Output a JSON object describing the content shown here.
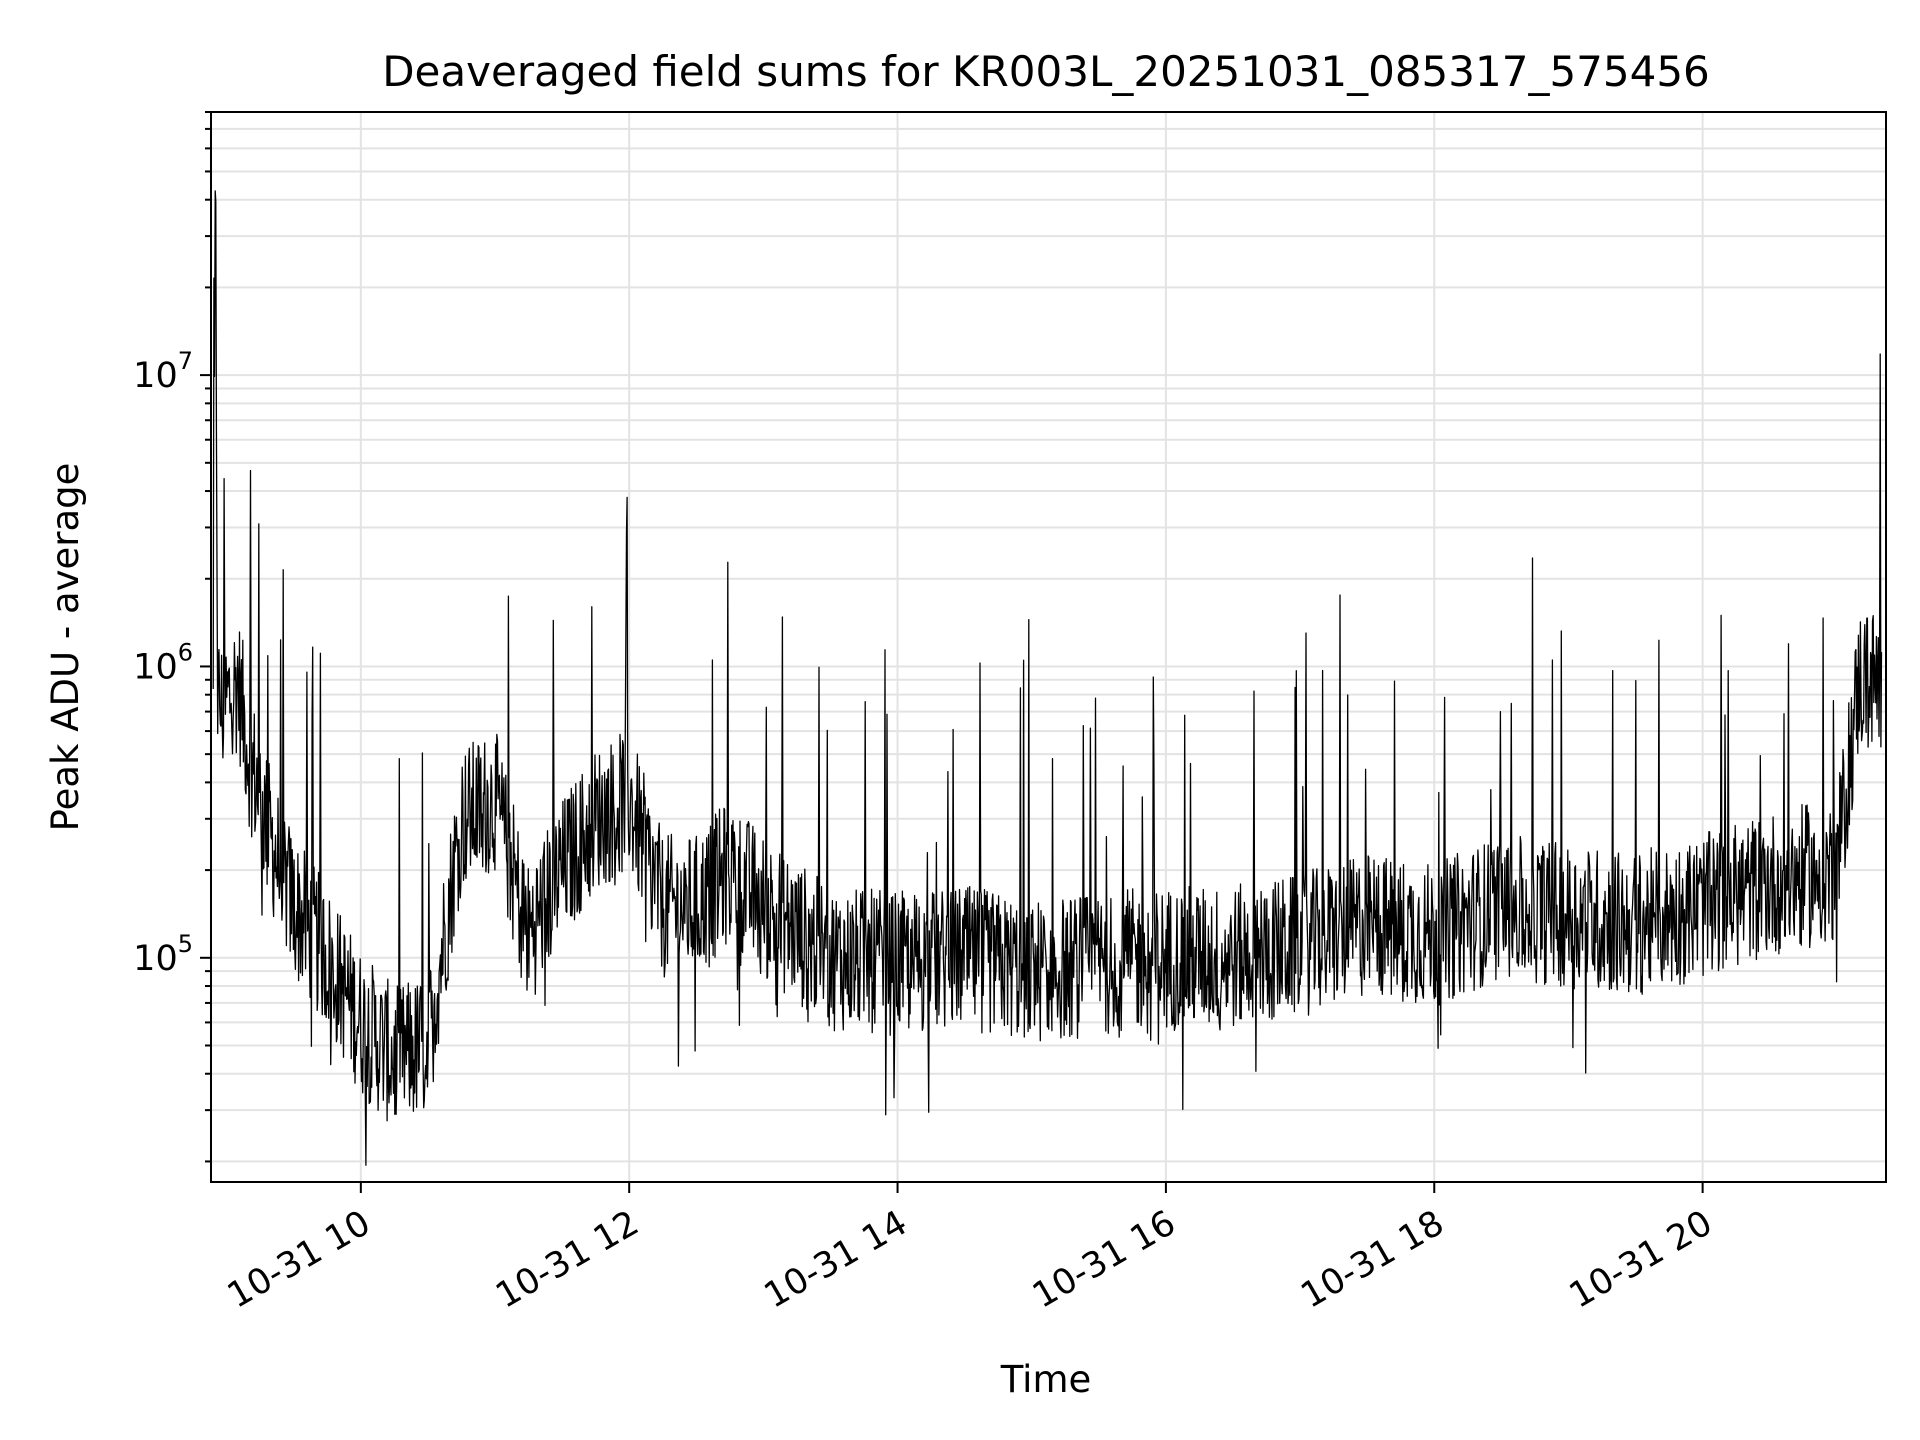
{
  "chart_data": {
    "type": "line",
    "title": "Deaveraged field sums for KR003L_20251031_085317_575456",
    "xlabel": "Time",
    "ylabel": "Peak ADU - average",
    "x_axis_type": "time",
    "xlim": [
      "2025-10-31 08:53",
      "2025-10-31 21:22"
    ],
    "x_ticks": [
      {
        "value": "2025-10-31 10:00",
        "label": "10-31 10"
      },
      {
        "value": "2025-10-31 12:00",
        "label": "10-31 12"
      },
      {
        "value": "2025-10-31 14:00",
        "label": "10-31 14"
      },
      {
        "value": "2025-10-31 16:00",
        "label": "10-31 16"
      },
      {
        "value": "2025-10-31 18:00",
        "label": "10-31 18"
      },
      {
        "value": "2025-10-31 20:00",
        "label": "10-31 20"
      }
    ],
    "y_scale": "log",
    "ylim": [
      17000,
      80000000
    ],
    "y_ticks": [
      {
        "value": 100000,
        "base": "10",
        "exponent": "5"
      },
      {
        "value": 1000000,
        "base": "10",
        "exponent": "6"
      },
      {
        "value": 10000000,
        "base": "10",
        "exponent": "7"
      }
    ],
    "grid": true,
    "line_color": "#000000",
    "grid_color": "#e3e3e3",
    "series": [
      {
        "x": [
          "2025-10-31 08:54",
          "2025-10-31 08:55",
          "2025-10-31 08:56",
          "2025-10-31 08:58",
          "2025-10-31 09:05",
          "2025-10-31 09:10",
          "2025-10-31 09:20",
          "2025-10-31 09:30",
          "2025-10-31 09:45",
          "2025-10-31 10:00",
          "2025-10-31 10:15",
          "2025-10-31 10:30",
          "2025-10-31 10:45",
          "2025-10-31 11:00",
          "2025-10-31 11:15",
          "2025-10-31 11:30",
          "2025-10-31 11:45",
          "2025-10-31 12:00",
          "2025-10-31 12:15",
          "2025-10-31 12:30",
          "2025-10-31 12:45",
          "2025-10-31 13:00",
          "2025-10-31 13:30",
          "2025-10-31 14:00",
          "2025-10-31 14:30",
          "2025-10-31 15:00",
          "2025-10-31 15:30",
          "2025-10-31 16:00",
          "2025-10-31 16:30",
          "2025-10-31 17:00",
          "2025-10-31 17:30",
          "2025-10-31 18:00",
          "2025-10-31 18:30",
          "2025-10-31 19:00",
          "2025-10-31 19:30",
          "2025-10-31 20:00",
          "2025-10-31 20:30",
          "2025-10-31 21:00",
          "2025-10-31 21:10",
          "2025-10-31 21:20"
        ],
        "values": [
          700000,
          50000000,
          800000,
          700000,
          900000,
          500000,
          250000,
          150000,
          100000,
          60000,
          45000,
          50000,
          300000,
          350000,
          120000,
          200000,
          300000,
          350000,
          150000,
          150000,
          200000,
          150000,
          100000,
          95000,
          100000,
          90000,
          95000,
          100000,
          100000,
          110000,
          130000,
          120000,
          150000,
          140000,
          130000,
          150000,
          180000,
          200000,
          900000,
          900000
        ]
      }
    ]
  }
}
